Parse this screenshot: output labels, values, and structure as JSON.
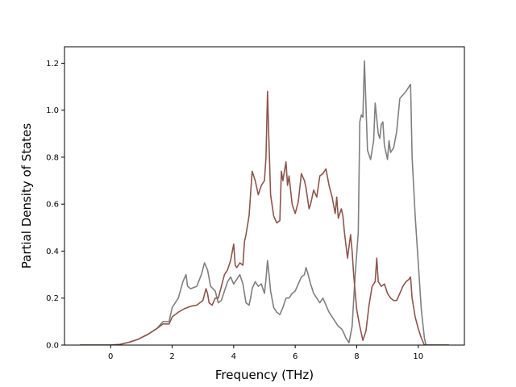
{
  "chart_data": {
    "type": "line",
    "title": "",
    "xlabel": "Frequency (THz)",
    "ylabel": "Partial Density of States",
    "xlim": [
      -1.5,
      11.5
    ],
    "ylim": [
      0.0,
      1.27
    ],
    "xticks": [
      0,
      2,
      4,
      6,
      8,
      10
    ],
    "yticks": [
      0.0,
      0.2,
      0.4,
      0.6,
      0.8,
      1.0,
      1.2
    ],
    "xtick_labels": [
      "0",
      "2",
      "4",
      "6",
      "8",
      "10"
    ],
    "ytick_labels": [
      "0.0",
      "0.2",
      "0.4",
      "0.6",
      "0.8",
      "1.0",
      "1.2"
    ],
    "grid": false,
    "legend": "none",
    "series": [
      {
        "color": "#7f7f7f",
        "points": [
          [
            -1.0,
            0.0
          ],
          [
            0.0,
            0.0
          ],
          [
            0.3,
            0.003
          ],
          [
            0.6,
            0.012
          ],
          [
            0.9,
            0.025
          ],
          [
            1.2,
            0.045
          ],
          [
            1.5,
            0.07
          ],
          [
            1.6,
            0.085
          ],
          [
            1.7,
            0.1
          ],
          [
            1.9,
            0.1
          ],
          [
            2.0,
            0.16
          ],
          [
            2.2,
            0.2
          ],
          [
            2.35,
            0.27
          ],
          [
            2.45,
            0.3
          ],
          [
            2.5,
            0.25
          ],
          [
            2.6,
            0.24
          ],
          [
            2.8,
            0.25
          ],
          [
            2.95,
            0.3
          ],
          [
            3.05,
            0.35
          ],
          [
            3.15,
            0.32
          ],
          [
            3.25,
            0.25
          ],
          [
            3.4,
            0.23
          ],
          [
            3.5,
            0.18
          ],
          [
            3.6,
            0.19
          ],
          [
            3.7,
            0.23
          ],
          [
            3.8,
            0.27
          ],
          [
            3.9,
            0.29
          ],
          [
            4.0,
            0.26
          ],
          [
            4.1,
            0.28
          ],
          [
            4.2,
            0.3
          ],
          [
            4.3,
            0.26
          ],
          [
            4.35,
            0.22
          ],
          [
            4.4,
            0.18
          ],
          [
            4.5,
            0.17
          ],
          [
            4.55,
            0.2
          ],
          [
            4.6,
            0.24
          ],
          [
            4.7,
            0.27
          ],
          [
            4.8,
            0.25
          ],
          [
            4.9,
            0.26
          ],
          [
            5.0,
            0.22
          ],
          [
            5.05,
            0.28
          ],
          [
            5.1,
            0.36
          ],
          [
            5.15,
            0.3
          ],
          [
            5.2,
            0.23
          ],
          [
            5.3,
            0.16
          ],
          [
            5.4,
            0.14
          ],
          [
            5.5,
            0.13
          ],
          [
            5.6,
            0.16
          ],
          [
            5.7,
            0.2
          ],
          [
            5.8,
            0.2
          ],
          [
            5.9,
            0.22
          ],
          [
            6.0,
            0.23
          ],
          [
            6.1,
            0.26
          ],
          [
            6.2,
            0.29
          ],
          [
            6.3,
            0.3
          ],
          [
            6.35,
            0.33
          ],
          [
            6.4,
            0.31
          ],
          [
            6.5,
            0.26
          ],
          [
            6.6,
            0.22
          ],
          [
            6.7,
            0.2
          ],
          [
            6.8,
            0.18
          ],
          [
            6.9,
            0.2
          ],
          [
            7.0,
            0.17
          ],
          [
            7.1,
            0.14
          ],
          [
            7.2,
            0.12
          ],
          [
            7.3,
            0.1
          ],
          [
            7.4,
            0.08
          ],
          [
            7.5,
            0.07
          ],
          [
            7.55,
            0.06
          ],
          [
            7.65,
            0.03
          ],
          [
            7.75,
            0.01
          ],
          [
            7.85,
            0.08
          ],
          [
            7.95,
            0.3
          ],
          [
            8.05,
            0.48
          ],
          [
            8.1,
            0.95
          ],
          [
            8.15,
            0.98
          ],
          [
            8.2,
            0.97
          ],
          [
            8.25,
            1.21
          ],
          [
            8.35,
            0.83
          ],
          [
            8.45,
            0.79
          ],
          [
            8.55,
            0.87
          ],
          [
            8.6,
            1.03
          ],
          [
            8.7,
            0.9
          ],
          [
            8.75,
            0.88
          ],
          [
            8.8,
            0.94
          ],
          [
            8.85,
            0.95
          ],
          [
            8.9,
            0.85
          ],
          [
            9.0,
            0.79
          ],
          [
            9.05,
            0.87
          ],
          [
            9.1,
            0.82
          ],
          [
            9.2,
            0.84
          ],
          [
            9.3,
            0.91
          ],
          [
            9.4,
            1.05
          ],
          [
            9.6,
            1.08
          ],
          [
            9.75,
            1.11
          ],
          [
            9.8,
            0.8
          ],
          [
            9.9,
            0.55
          ],
          [
            10.0,
            0.35
          ],
          [
            10.1,
            0.15
          ],
          [
            10.2,
            0.03
          ],
          [
            10.25,
            0.0
          ],
          [
            11.0,
            0.0
          ]
        ]
      },
      {
        "color": "#8c564b",
        "points": [
          [
            -1.0,
            0.0
          ],
          [
            0.0,
            0.0
          ],
          [
            0.3,
            0.003
          ],
          [
            0.6,
            0.012
          ],
          [
            0.9,
            0.025
          ],
          [
            1.2,
            0.045
          ],
          [
            1.5,
            0.07
          ],
          [
            1.6,
            0.08
          ],
          [
            1.7,
            0.09
          ],
          [
            1.9,
            0.09
          ],
          [
            2.0,
            0.12
          ],
          [
            2.2,
            0.14
          ],
          [
            2.4,
            0.155
          ],
          [
            2.6,
            0.165
          ],
          [
            2.8,
            0.17
          ],
          [
            3.0,
            0.19
          ],
          [
            3.1,
            0.24
          ],
          [
            3.15,
            0.22
          ],
          [
            3.2,
            0.18
          ],
          [
            3.3,
            0.17
          ],
          [
            3.4,
            0.2
          ],
          [
            3.5,
            0.2
          ],
          [
            3.6,
            0.25
          ],
          [
            3.7,
            0.3
          ],
          [
            3.8,
            0.32
          ],
          [
            3.9,
            0.36
          ],
          [
            4.0,
            0.43
          ],
          [
            4.05,
            0.34
          ],
          [
            4.1,
            0.33
          ],
          [
            4.2,
            0.35
          ],
          [
            4.3,
            0.34
          ],
          [
            4.35,
            0.44
          ],
          [
            4.4,
            0.47
          ],
          [
            4.5,
            0.55
          ],
          [
            4.6,
            0.74
          ],
          [
            4.7,
            0.7
          ],
          [
            4.8,
            0.64
          ],
          [
            4.9,
            0.68
          ],
          [
            5.0,
            0.7
          ],
          [
            5.05,
            0.8
          ],
          [
            5.1,
            1.08
          ],
          [
            5.15,
            0.85
          ],
          [
            5.2,
            0.64
          ],
          [
            5.3,
            0.55
          ],
          [
            5.4,
            0.52
          ],
          [
            5.5,
            0.53
          ],
          [
            5.55,
            0.74
          ],
          [
            5.6,
            0.7
          ],
          [
            5.7,
            0.78
          ],
          [
            5.75,
            0.68
          ],
          [
            5.8,
            0.72
          ],
          [
            5.9,
            0.6
          ],
          [
            6.0,
            0.56
          ],
          [
            6.1,
            0.61
          ],
          [
            6.2,
            0.73
          ],
          [
            6.3,
            0.7
          ],
          [
            6.35,
            0.67
          ],
          [
            6.45,
            0.58
          ],
          [
            6.5,
            0.6
          ],
          [
            6.6,
            0.66
          ],
          [
            6.7,
            0.63
          ],
          [
            6.8,
            0.72
          ],
          [
            6.9,
            0.73
          ],
          [
            7.0,
            0.75
          ],
          [
            7.1,
            0.68
          ],
          [
            7.2,
            0.63
          ],
          [
            7.3,
            0.56
          ],
          [
            7.35,
            0.63
          ],
          [
            7.4,
            0.54
          ],
          [
            7.5,
            0.58
          ],
          [
            7.55,
            0.55
          ],
          [
            7.6,
            0.48
          ],
          [
            7.7,
            0.37
          ],
          [
            7.8,
            0.47
          ],
          [
            7.85,
            0.4
          ],
          [
            7.9,
            0.3
          ],
          [
            8.0,
            0.15
          ],
          [
            8.1,
            0.08
          ],
          [
            8.2,
            0.02
          ],
          [
            8.3,
            0.06
          ],
          [
            8.4,
            0.17
          ],
          [
            8.5,
            0.25
          ],
          [
            8.6,
            0.27
          ],
          [
            8.65,
            0.37
          ],
          [
            8.7,
            0.27
          ],
          [
            8.8,
            0.25
          ],
          [
            8.9,
            0.26
          ],
          [
            9.0,
            0.22
          ],
          [
            9.1,
            0.2
          ],
          [
            9.2,
            0.19
          ],
          [
            9.3,
            0.19
          ],
          [
            9.4,
            0.22
          ],
          [
            9.5,
            0.25
          ],
          [
            9.6,
            0.27
          ],
          [
            9.7,
            0.28
          ],
          [
            9.75,
            0.29
          ],
          [
            9.8,
            0.2
          ],
          [
            9.9,
            0.12
          ],
          [
            10.0,
            0.07
          ],
          [
            10.1,
            0.03
          ],
          [
            10.2,
            0.0
          ],
          [
            11.0,
            0.0
          ]
        ]
      }
    ]
  }
}
